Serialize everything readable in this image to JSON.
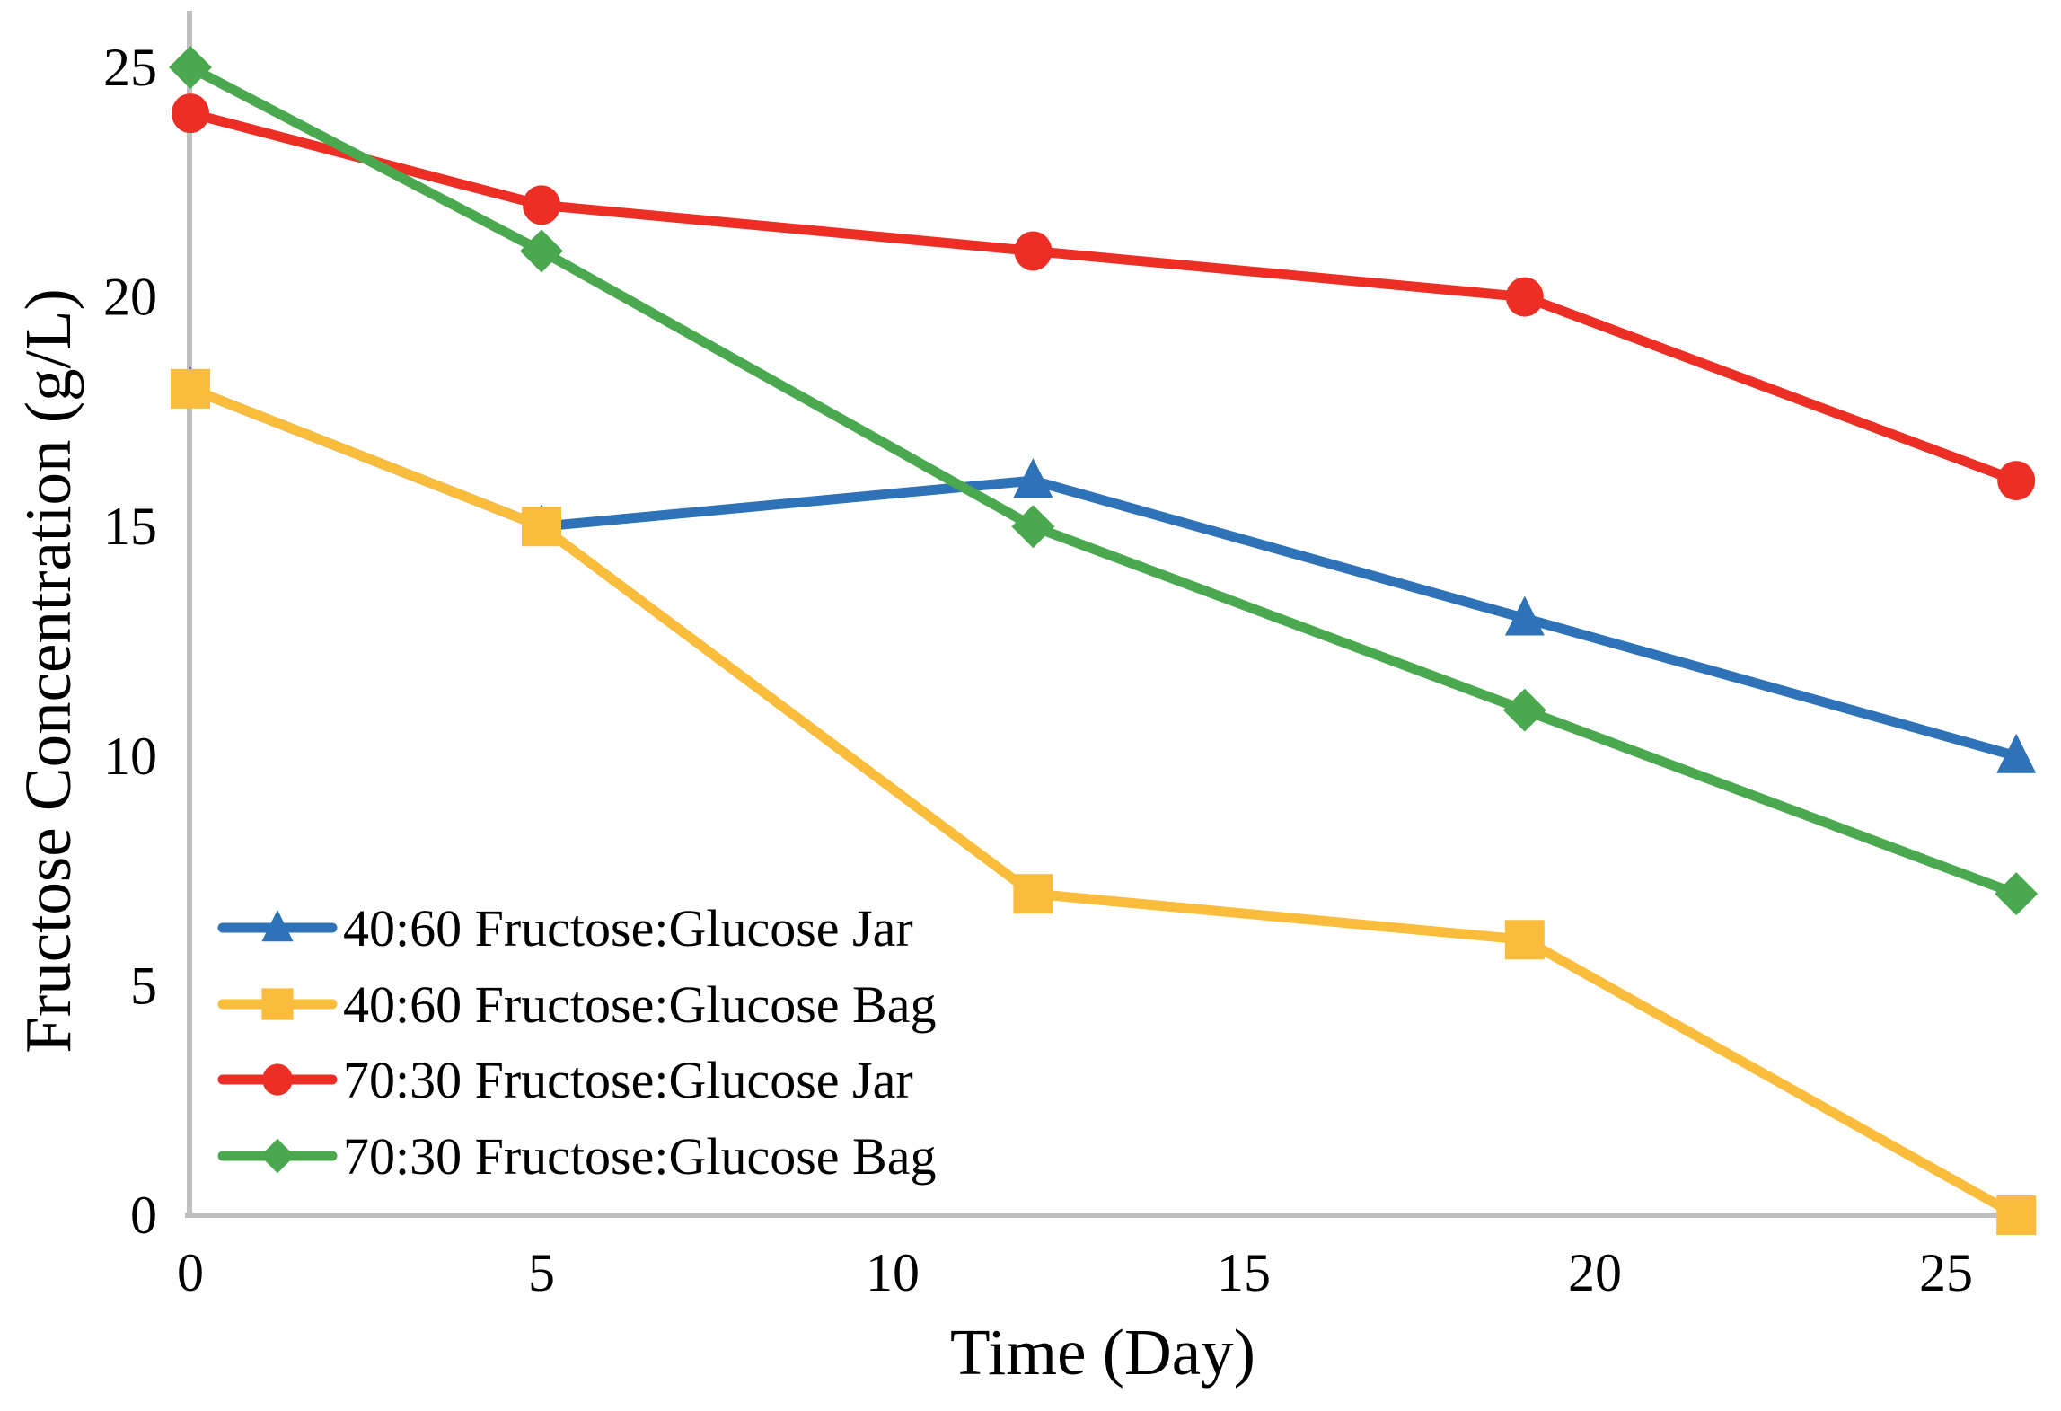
{
  "figure": {
    "background_color": "#ffffff",
    "axis_line_color": "#bfbfbf",
    "text_color": "#000000"
  },
  "chart_data": {
    "type": "line",
    "title": "",
    "xlabel": "Time (Day)",
    "ylabel": "Fructose Concentration (g/L)",
    "x": [
      0,
      5,
      12,
      19,
      26
    ],
    "x_ticks": [
      "0",
      "5",
      "10",
      "15",
      "20",
      "25"
    ],
    "x_tick_values": [
      0,
      5,
      10,
      15,
      20,
      25
    ],
    "y_ticks": [
      "0",
      "5",
      "10",
      "15",
      "20",
      "25"
    ],
    "y_tick_values": [
      0,
      5,
      10,
      15,
      20,
      25
    ],
    "xlim": [
      0,
      26
    ],
    "ylim": [
      0,
      25
    ],
    "grid": false,
    "legend_position": "inside lower-left",
    "series": [
      {
        "name": "40:60 Fructose:Glucose Jar",
        "marker": "triangle",
        "color": "#2e72b8",
        "values": [
          18,
          15,
          16,
          13,
          10
        ]
      },
      {
        "name": "40:60 Fructose:Glucose Bag",
        "marker": "square",
        "color": "#f9bd3b",
        "values": [
          18,
          15,
          7,
          6,
          0
        ]
      },
      {
        "name": "70:30 Fructose:Glucose Jar",
        "marker": "circle",
        "color": "#ed2e24",
        "values": [
          24,
          22,
          21,
          20,
          16
        ]
      },
      {
        "name": "70:30 Fructose:Glucose Bag",
        "marker": "diamond",
        "color": "#4aa94f",
        "values": [
          25,
          21,
          15,
          11,
          7
        ]
      }
    ]
  }
}
